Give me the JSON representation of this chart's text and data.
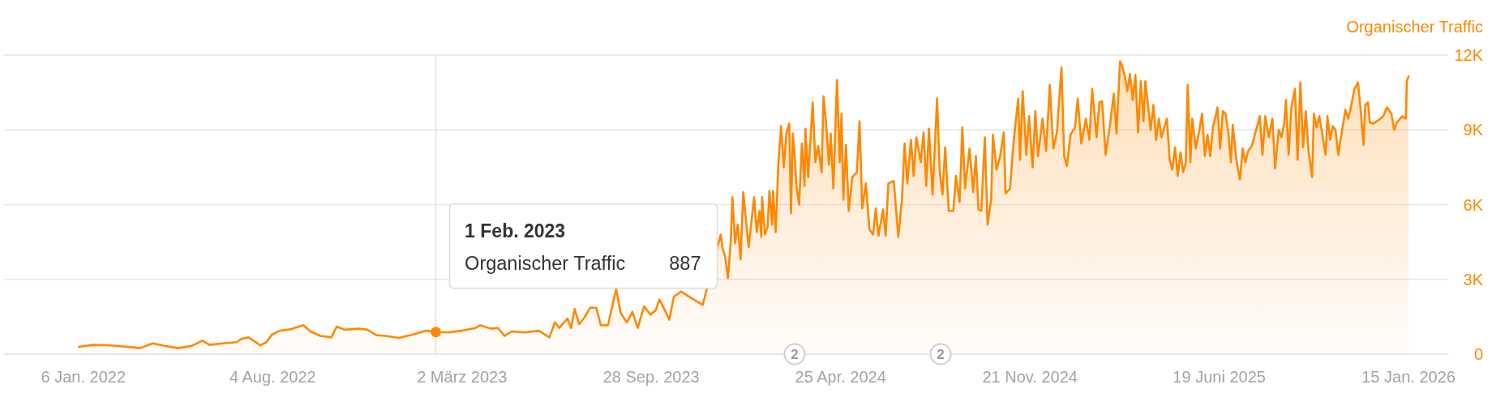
{
  "chart_data": {
    "type": "area",
    "ylabel": "Organischer Traffic",
    "x": [
      "2022-01-01",
      "2022-01-16",
      "2022-02-05",
      "2022-02-25",
      "2022-03-10",
      "2022-03-24",
      "2022-04-06",
      "2022-04-21",
      "2022-05-06",
      "2022-05-18",
      "2022-05-26",
      "2022-06-10",
      "2022-06-25",
      "2022-07-01",
      "2022-07-08",
      "2022-07-15",
      "2022-07-21",
      "2022-07-28",
      "2022-08-03",
      "2022-08-12",
      "2022-08-24",
      "2022-09-07",
      "2022-09-15",
      "2022-09-26",
      "2022-10-08",
      "2022-10-14",
      "2022-10-23",
      "2022-11-07",
      "2022-11-17",
      "2022-11-27",
      "2022-12-07",
      "2022-12-22",
      "2023-01-06",
      "2023-01-21",
      "2023-02-01",
      "2023-02-15",
      "2023-03-02",
      "2023-03-17",
      "2023-03-22",
      "2023-04-03",
      "2023-04-11",
      "2023-04-18",
      "2023-04-26",
      "2023-05-11",
      "2023-05-26",
      "2023-06-07",
      "2023-06-13",
      "2023-06-18",
      "2023-06-27",
      "2023-07-01",
      "2023-07-05",
      "2023-07-10",
      "2023-07-16",
      "2023-07-22",
      "2023-07-29",
      "2023-08-03",
      "2023-08-11",
      "2023-08-20",
      "2023-08-25",
      "2023-09-01",
      "2023-09-07",
      "2023-09-13",
      "2023-09-20",
      "2023-09-27",
      "2023-10-03",
      "2023-10-07",
      "2023-10-13",
      "2023-10-18",
      "2023-10-23",
      "2023-10-31",
      "2023-11-24",
      "2023-12-14",
      "2023-12-16",
      "2023-12-19",
      "2023-12-22",
      "2023-12-25",
      "2023-12-27",
      "2023-12-30",
      "2024-01-02",
      "2024-01-05",
      "2024-01-08",
      "2024-01-14",
      "2024-01-20",
      "2024-01-23",
      "2024-01-26",
      "2024-01-28",
      "2024-01-29",
      "2024-02-01",
      "2024-02-04",
      "2024-02-06",
      "2024-02-09",
      "2024-02-10",
      "2024-02-13",
      "2024-02-16",
      "2024-02-19",
      "2024-02-22",
      "2024-02-25",
      "2024-02-28",
      "2024-03-01",
      "2024-03-03",
      "2024-03-05",
      "2024-03-07",
      "2024-03-10",
      "2024-03-13",
      "2024-03-16",
      "2024-03-17",
      "2024-03-20",
      "2024-03-25",
      "2024-03-28",
      "2024-03-31",
      "2024-04-04",
      "2024-04-06",
      "2024-04-09",
      "2024-04-12",
      "2024-04-14",
      "2024-04-17",
      "2024-04-21",
      "2024-04-24",
      "2024-04-26",
      "2024-04-28",
      "2024-05-01",
      "2024-05-04",
      "2024-05-08",
      "2024-05-13",
      "2024-05-16",
      "2024-05-19",
      "2024-05-23",
      "2024-05-27",
      "2024-05-31",
      "2024-06-03",
      "2024-06-06",
      "2024-06-11",
      "2024-06-14",
      "2024-06-17",
      "2024-06-23",
      "2024-06-28",
      "2024-07-02",
      "2024-07-05",
      "2024-07-08",
      "2024-07-12",
      "2024-07-15",
      "2024-07-18",
      "2024-07-23",
      "2024-07-26",
      "2024-07-29",
      "2024-08-01",
      "2024-08-05",
      "2024-08-10",
      "2024-08-13",
      "2024-08-16",
      "2024-08-19",
      "2024-08-23",
      "2024-08-28",
      "2024-08-31",
      "2024-09-04",
      "2024-09-07",
      "2024-09-10",
      "2024-09-15",
      "2024-09-19",
      "2024-09-22",
      "2024-09-25",
      "2024-09-28",
      "2024-10-02",
      "2024-10-05",
      "2024-10-09",
      "2024-10-11",
      "2024-10-15",
      "2024-10-19",
      "2024-10-23",
      "2024-10-25",
      "2024-10-30",
      "2024-11-02",
      "2024-11-05",
      "2024-11-08",
      "2024-11-10",
      "2024-11-13",
      "2024-11-17",
      "2024-11-20",
      "2024-11-24",
      "2024-11-27",
      "2024-11-30",
      "2024-12-05",
      "2024-12-09",
      "2024-12-13",
      "2024-12-17",
      "2024-12-21",
      "2024-12-26",
      "2024-12-29",
      "2025-01-01",
      "2025-01-05",
      "2025-01-10",
      "2025-01-13",
      "2025-01-17",
      "2025-01-22",
      "2025-01-26",
      "2025-01-29",
      "2025-02-03",
      "2025-02-06",
      "2025-02-09",
      "2025-02-13",
      "2025-02-18",
      "2025-02-22",
      "2025-02-25",
      "2025-03-01",
      "2025-03-03",
      "2025-03-06",
      "2025-03-09",
      "2025-03-12",
      "2025-03-15",
      "2025-03-18",
      "2025-03-21",
      "2025-03-24",
      "2025-03-27",
      "2025-03-29",
      "2025-04-01",
      "2025-04-04",
      "2025-04-07",
      "2025-04-10",
      "2025-04-13",
      "2025-04-16",
      "2025-04-19",
      "2025-04-22",
      "2025-04-25",
      "2025-04-28",
      "2025-05-01",
      "2025-05-04",
      "2025-05-07",
      "2025-05-10",
      "2025-05-13",
      "2025-05-15",
      "2025-05-18",
      "2025-05-20",
      "2025-05-24",
      "2025-05-28",
      "2025-05-31",
      "2025-06-03",
      "2025-06-06",
      "2025-06-09",
      "2025-06-12",
      "2025-06-15",
      "2025-06-17",
      "2025-06-20",
      "2025-06-23",
      "2025-06-26",
      "2025-06-29",
      "2025-07-02",
      "2025-07-04",
      "2025-07-08",
      "2025-07-12",
      "2025-07-15",
      "2025-07-18",
      "2025-07-21",
      "2025-07-25",
      "2025-07-30",
      "2025-08-03",
      "2025-08-06",
      "2025-08-09",
      "2025-08-13",
      "2025-08-17",
      "2025-08-20",
      "2025-08-24",
      "2025-08-27",
      "2025-08-30",
      "2025-09-01",
      "2025-09-04",
      "2025-09-07",
      "2025-09-11",
      "2025-09-14",
      "2025-09-17",
      "2025-09-20",
      "2025-09-23",
      "2025-09-26",
      "2025-09-30",
      "2025-10-02",
      "2025-10-05",
      "2025-10-08",
      "2025-10-11",
      "2025-10-15",
      "2025-10-17",
      "2025-10-20",
      "2025-10-23",
      "2025-10-26",
      "2025-10-29",
      "2025-11-01",
      "2025-11-06",
      "2025-11-09",
      "2025-11-12",
      "2025-11-16",
      "2025-11-20",
      "2025-11-23",
      "2025-11-26",
      "2025-11-28",
      "2025-12-01",
      "2025-12-03",
      "2025-12-07",
      "2025-12-13",
      "2025-12-18",
      "2025-12-22",
      "2025-12-27",
      "2025-12-30",
      "2026-01-02",
      "2026-01-08",
      "2026-01-12",
      "2026-01-13",
      "2026-01-15"
    ],
    "series": [
      {
        "color": "#ff8800",
        "values": [
          290,
          370,
          350,
          290,
          240,
          430,
          330,
          240,
          330,
          540,
          370,
          430,
          480,
          620,
          670,
          510,
          350,
          480,
          780,
          940,
          1000,
          1160,
          910,
          730,
          670,
          1100,
          980,
          1020,
          980,
          760,
          730,
          650,
          780,
          940,
          887,
          870,
          940,
          1050,
          1160,
          1020,
          1050,
          730,
          910,
          870,
          940,
          670,
          1270,
          1050,
          1430,
          1050,
          1810,
          1210,
          1480,
          1860,
          1860,
          1160,
          1160,
          2620,
          1650,
          1270,
          1700,
          1050,
          1920,
          1590,
          1760,
          2190,
          1760,
          1380,
          2300,
          2510,
          1970,
          4800,
          4250,
          3900,
          3050,
          4450,
          6300,
          4450,
          5200,
          3800,
          6500,
          4300,
          6300,
          4900,
          5750,
          4700,
          6300,
          4800,
          5100,
          6550,
          5200,
          6550,
          4900,
          7700,
          9150,
          7500,
          8900,
          9250,
          5650,
          8850,
          7950,
          6750,
          6000,
          8450,
          6750,
          9050,
          7100,
          10100,
          7700,
          8350,
          7300,
          10350,
          9250,
          7600,
          8850,
          6650,
          11000,
          7700,
          9650,
          6200,
          8400,
          5750,
          7100,
          7300,
          9350,
          5850,
          6850,
          5000,
          4800,
          5850,
          4750,
          5800,
          4750,
          6850,
          6950,
          4700,
          6200,
          8450,
          6850,
          8600,
          7150,
          8700,
          7700,
          8900,
          6750,
          9050,
          6400,
          10250,
          7300,
          6400,
          8300,
          5750,
          5750,
          7150,
          6100,
          9100,
          6650,
          8250,
          6500,
          7950,
          5800,
          5750,
          8700,
          5200,
          6200,
          8800,
          7400,
          7950,
          8900,
          6450,
          6650,
          8150,
          9250,
          10250,
          7800,
          10550,
          8000,
          9550,
          7500,
          9750,
          7950,
          9450,
          8150,
          10800,
          8250,
          8900,
          11500,
          7950,
          7550,
          8800,
          9100,
          10250,
          8450,
          9450,
          8600,
          10650,
          8700,
          10100,
          10150,
          8000,
          9250,
          10450,
          8850,
          11750,
          11600,
          11200,
          10550,
          11250,
          10200,
          11200,
          8900,
          10950,
          9350,
          10950,
          10000,
          9000,
          10000,
          8600,
          9450,
          8700,
          9100,
          9450,
          7800,
          7400,
          8300,
          7150,
          8100,
          7300,
          7700,
          10800,
          7700,
          9450,
          8250,
          9000,
          9650,
          7950,
          8800,
          7950,
          9100,
          9550,
          9900,
          8250,
          9750,
          9650,
          8900,
          7700,
          9200,
          7800,
          7000,
          8250,
          7700,
          8150,
          8350,
          9000,
          9550,
          8000,
          9550,
          8700,
          9450,
          7450,
          9000,
          8700,
          9250,
          10200,
          8000,
          9900,
          10650,
          7800,
          10900,
          8300,
          9750,
          8150,
          7100,
          9650,
          9100,
          9550,
          8900,
          8000,
          9550,
          8600,
          9150,
          9000,
          8000,
          8700,
          9800,
          9450,
          9900,
          10650,
          10900,
          9750,
          8400,
          10000,
          10100,
          9300,
          9250,
          9400,
          9550,
          9900,
          9650,
          9000,
          9300,
          9550,
          9450,
          10950,
          11150
        ]
      }
    ],
    "xlim": [
      "2021-10-10",
      "2026-02-28"
    ],
    "xticks": [
      {
        "value": "2022-01-06",
        "label": "6 Jan. 2022"
      },
      {
        "value": "2022-08-04",
        "label": "4 Aug. 2022"
      },
      {
        "value": "2023-03-02",
        "label": "2 März 2023"
      },
      {
        "value": "2023-09-28",
        "label": "28 Sep. 2023"
      },
      {
        "value": "2024-04-25",
        "label": "25 Apr. 2024"
      },
      {
        "value": "2024-11-21",
        "label": "21 Nov. 2024"
      },
      {
        "value": "2025-06-19",
        "label": "19 Juni 2025"
      },
      {
        "value": "2026-01-15",
        "label": "15 Jan. 2026"
      }
    ],
    "ylim": [
      0,
      12000
    ],
    "yticks": [
      0,
      {
        "value": 3000,
        "label": "3K"
      },
      {
        "value": 6000,
        "label": "6K"
      },
      {
        "value": 9000,
        "label": "9K"
      },
      {
        "value": 12000,
        "label": "12K"
      }
    ],
    "grid": "y",
    "ref_lines": [
      {
        "axis": "x",
        "value": "2023-02-01",
        "color": "#e3e3e3"
      }
    ],
    "annotations": [
      "1 Feb. 2023",
      "Organischer Traffic",
      "887",
      "2",
      "2"
    ]
  }
}
